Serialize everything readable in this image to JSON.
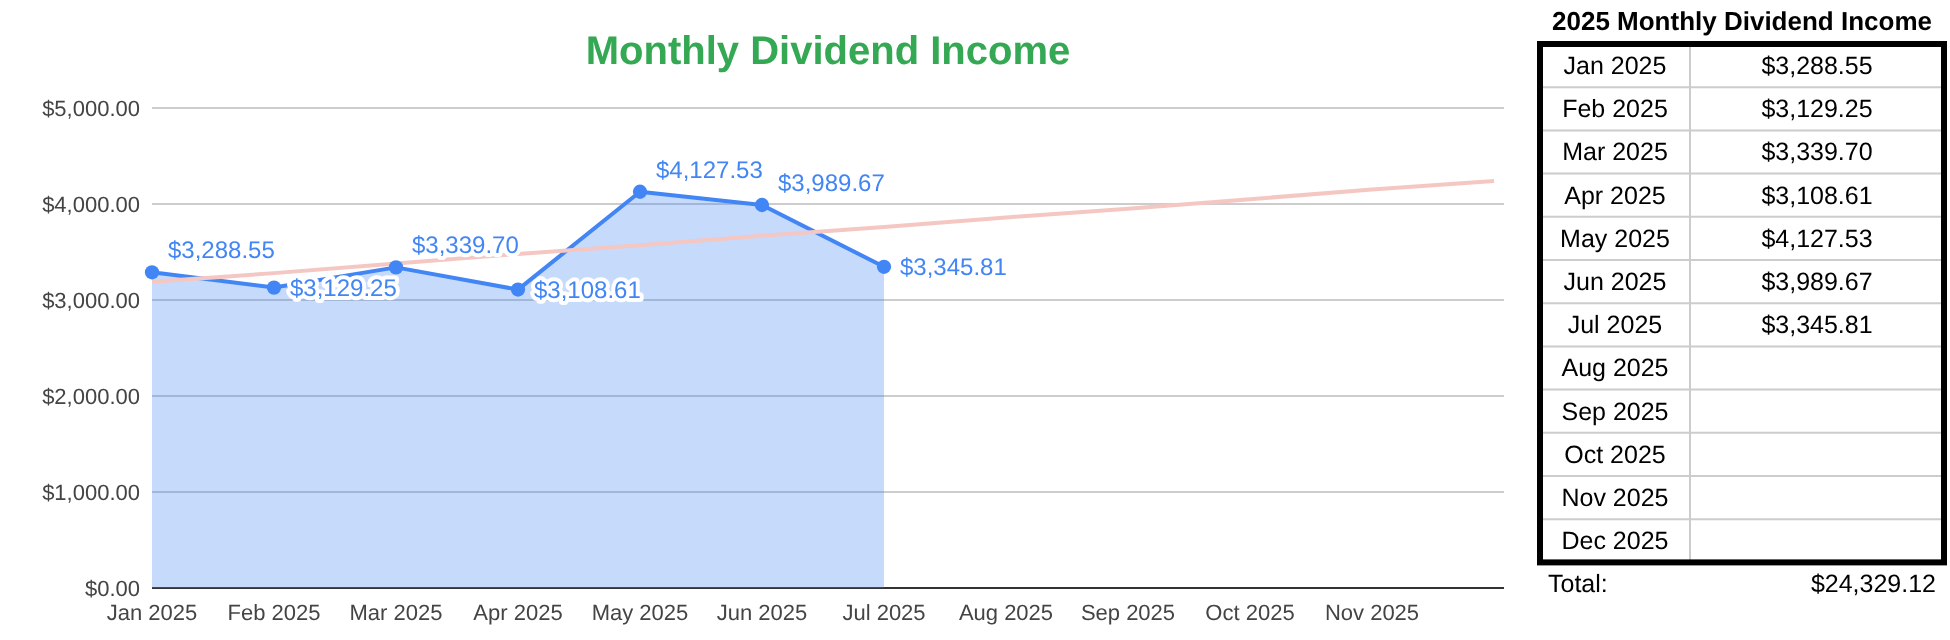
{
  "chart_data": [
    {
      "type": "area",
      "title": "Monthly Dividend Income",
      "categories": [
        "Jan 2025",
        "Feb 2025",
        "Mar 2025",
        "Apr 2025",
        "May 2025",
        "Jun 2025",
        "Jul 2025",
        "Aug 2025",
        "Sep 2025",
        "Oct 2025",
        "Nov 2025",
        null
      ],
      "series": [
        {
          "color": "#4285f4",
          "values": [
            3288.55,
            3129.25,
            3339.7,
            3108.61,
            4127.53,
            3989.67,
            3345.81,
            null,
            null,
            null,
            null,
            null
          ],
          "value_labels": [
            "$3,288.55",
            "$3,129.25",
            "$3,339.70",
            "$3,108.61",
            "$4,127.53",
            "$3,989.67",
            "$3,345.81",
            null,
            null,
            null,
            null,
            null
          ]
        },
        {
          "type": "line",
          "color": "#f4c7c3",
          "marker": "none",
          "values": [
            3190,
            3280,
            3380,
            3480,
            3570,
            3670,
            3760,
            3860,
            3950,
            4050,
            4150,
            4240
          ]
        }
      ],
      "ylim": [
        0,
        5000
      ],
      "yticks": [
        {
          "value": 0,
          "label": "$0.00"
        },
        {
          "value": 1000,
          "label": "$1,000.00"
        },
        {
          "value": 2000,
          "label": "$2,000.00"
        },
        {
          "value": 3000,
          "label": "$3,000.00"
        },
        {
          "value": 4000,
          "label": "$4,000.00"
        },
        {
          "value": 5000,
          "label": "$5,000.00"
        }
      ],
      "grid": "y",
      "marker": "circle"
    },
    {
      "type": "other",
      "title": "2025 Monthly Dividend Income",
      "categories": [
        "Jan 2025",
        "Feb 2025",
        "Mar 2025",
        "Apr 2025",
        "May 2025",
        "Jun 2025",
        "Jul 2025",
        "Aug 2025",
        "Sep 2025",
        "Oct 2025",
        "Nov 2025",
        "Dec 2025"
      ],
      "value_labels": [
        "$3,288.55",
        "$3,129.25",
        "$3,339.70",
        "$3,108.61",
        "$4,127.53",
        "$3,989.67",
        "$3,345.81",
        null,
        null,
        null,
        null,
        null
      ],
      "annotations": [
        "Total:",
        "$24,329.12"
      ]
    }
  ]
}
